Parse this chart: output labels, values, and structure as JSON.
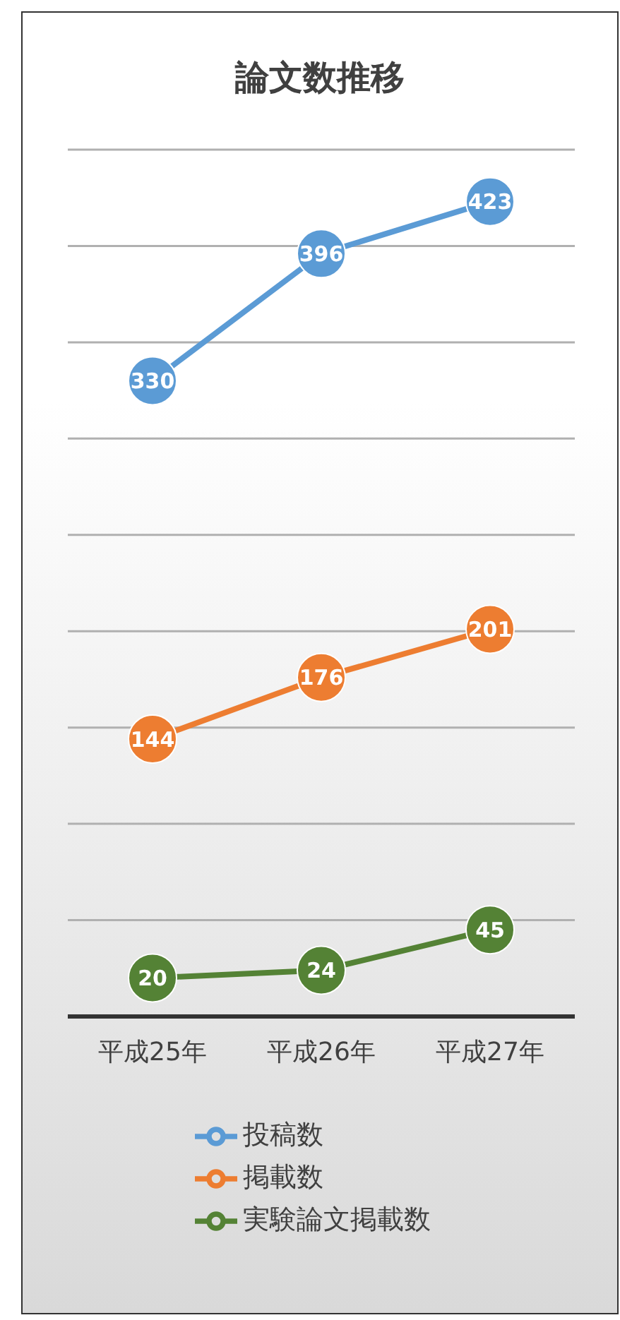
{
  "chart_data": {
    "type": "line",
    "title": "論文数推移",
    "categories": [
      "平成25年",
      "平成26年",
      "平成27年"
    ],
    "series": [
      {
        "name": "投稿数",
        "color": "#5b9bd5",
        "values": [
          330,
          396,
          423
        ]
      },
      {
        "name": "掲載数",
        "color": "#ed7d31",
        "values": [
          144,
          176,
          201
        ]
      },
      {
        "name": "実験論文掲載数",
        "color": "#548235",
        "values": [
          20,
          24,
          45
        ]
      }
    ],
    "ylim": [
      0,
      450
    ],
    "yticks": [
      {
        "value": 0,
        "label": null
      },
      {
        "value": 50,
        "label": null
      },
      {
        "value": 100,
        "label": null
      },
      {
        "value": 150,
        "label": null
      },
      {
        "value": 200,
        "label": null
      },
      {
        "value": 250,
        "label": null
      },
      {
        "value": 300,
        "label": null
      },
      {
        "value": 350,
        "label": null
      },
      {
        "value": 400,
        "label": null
      },
      {
        "value": 450,
        "label": null
      }
    ],
    "tick_labels": "x",
    "grid": "y",
    "legend": "bottom",
    "marker": "circle",
    "line_style": "solid",
    "data_labels": true
  }
}
